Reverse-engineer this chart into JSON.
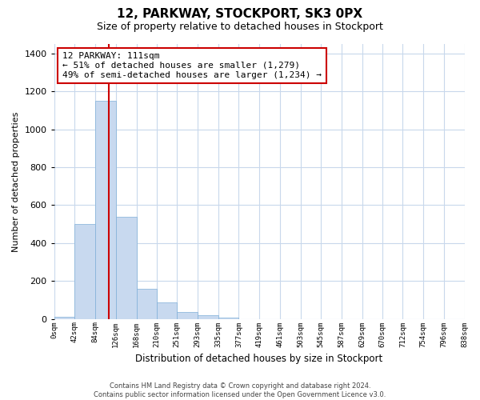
{
  "title": "12, PARKWAY, STOCKPORT, SK3 0PX",
  "subtitle": "Size of property relative to detached houses in Stockport",
  "xlabel": "Distribution of detached houses by size in Stockport",
  "ylabel": "Number of detached properties",
  "bin_edges": [
    0,
    42,
    84,
    126,
    168,
    210,
    251,
    293,
    335,
    377,
    419,
    461,
    503,
    545,
    587,
    629,
    670,
    712,
    754,
    796,
    838
  ],
  "bin_labels": [
    "0sqm",
    "42sqm",
    "84sqm",
    "126sqm",
    "168sqm",
    "210sqm",
    "251sqm",
    "293sqm",
    "335sqm",
    "377sqm",
    "419sqm",
    "461sqm",
    "503sqm",
    "545sqm",
    "587sqm",
    "629sqm",
    "670sqm",
    "712sqm",
    "754sqm",
    "796sqm",
    "838sqm"
  ],
  "bar_values": [
    10,
    500,
    1150,
    540,
    160,
    85,
    35,
    18,
    5,
    0,
    0,
    0,
    0,
    0,
    0,
    0,
    0,
    0,
    0,
    0
  ],
  "bar_color": "#c8d9ef",
  "bar_edge_color": "#7fb0d8",
  "marker_line_x": 111,
  "marker_color": "#cc0000",
  "ylim": [
    0,
    1450
  ],
  "yticks": [
    0,
    200,
    400,
    600,
    800,
    1000,
    1200,
    1400
  ],
  "xlim": [
    0,
    838
  ],
  "annotation_title": "12 PARKWAY: 111sqm",
  "annotation_line1": "← 51% of detached houses are smaller (1,279)",
  "annotation_line2": "49% of semi-detached houses are larger (1,234) →",
  "annotation_box_color": "#ffffff",
  "annotation_box_edgecolor": "#cc0000",
  "footer_line1": "Contains HM Land Registry data © Crown copyright and database right 2024.",
  "footer_line2": "Contains public sector information licensed under the Open Government Licence v3.0.",
  "background_color": "#ffffff",
  "grid_color": "#c8d8ec"
}
